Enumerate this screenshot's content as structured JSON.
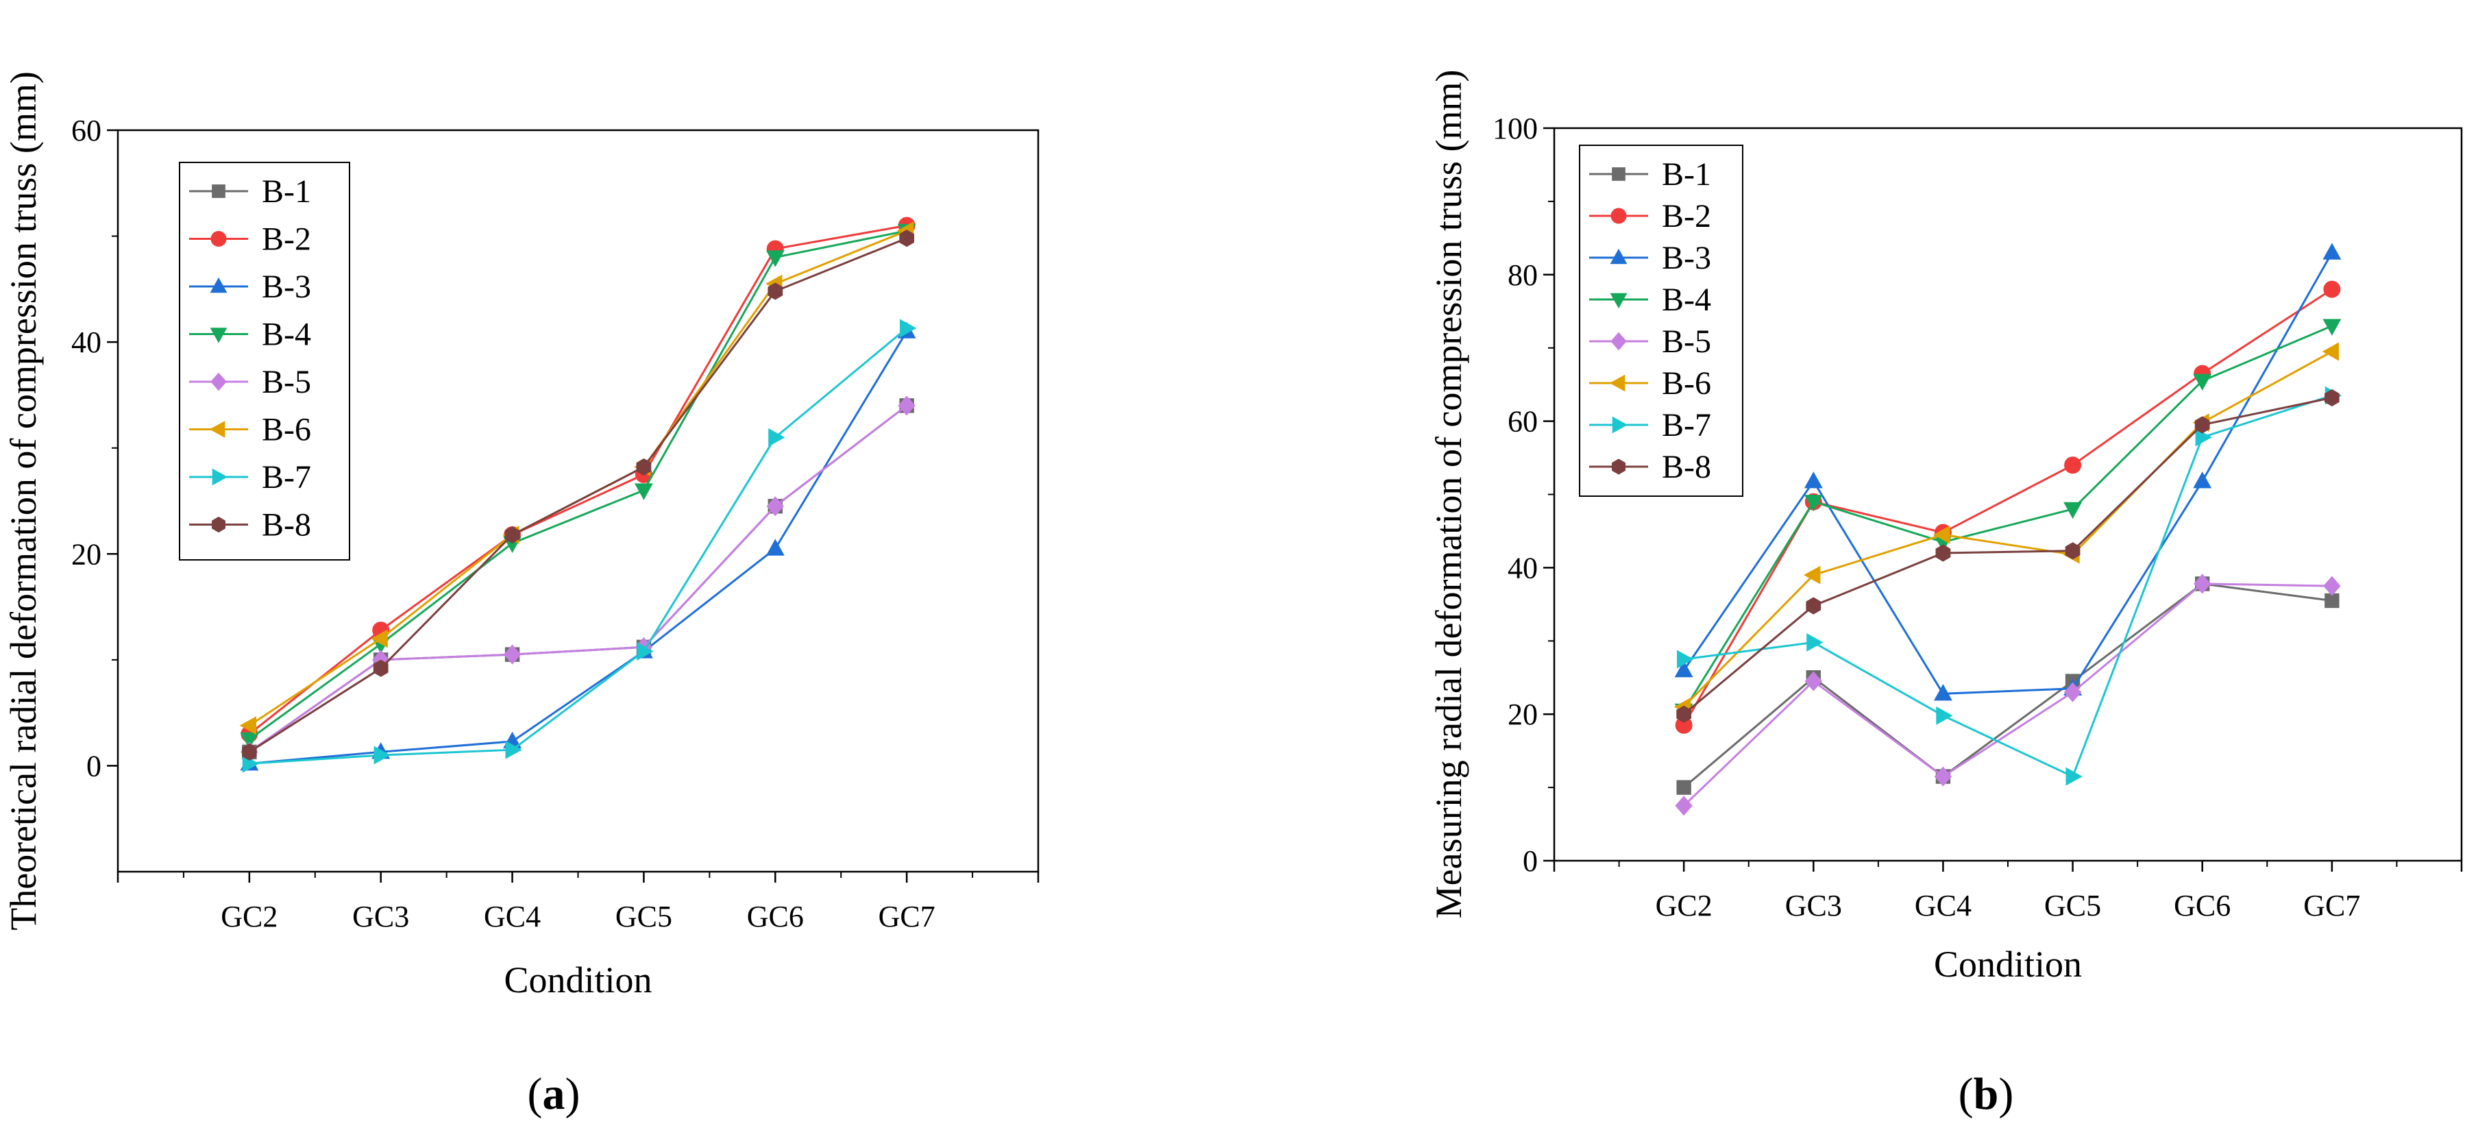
{
  "chart_data": [
    {
      "type": "line",
      "panel_label": "(a)",
      "panel_letter": "a",
      "title": "",
      "xlabel": "Condition",
      "ylabel": "Theoretical radial deformation of compression truss (mm)",
      "categories": [
        "GC2",
        "GC3",
        "GC4",
        "GC5",
        "GC6",
        "GC7"
      ],
      "ylim": [
        -10,
        60
      ],
      "yticks": [
        0,
        20,
        40,
        60
      ],
      "legend_position": "top-left",
      "series": [
        {
          "name": "B-1",
          "color": "#6b6b6b",
          "marker": "square",
          "values": [
            1.3,
            10.0,
            10.5,
            11.2,
            24.5,
            34.0
          ]
        },
        {
          "name": "B-2",
          "color": "#f03b3b",
          "marker": "circle",
          "values": [
            3.0,
            12.8,
            21.8,
            27.5,
            48.8,
            51.0
          ]
        },
        {
          "name": "B-3",
          "color": "#1f6fd6",
          "marker": "triangle-up",
          "values": [
            0.2,
            1.3,
            2.3,
            10.8,
            20.5,
            41.0
          ]
        },
        {
          "name": "B-4",
          "color": "#16a85a",
          "marker": "triangle-down",
          "values": [
            2.5,
            11.5,
            21.0,
            26.0,
            48.0,
            50.5
          ]
        },
        {
          "name": "B-5",
          "color": "#c57fe0",
          "marker": "diamond",
          "values": [
            1.3,
            10.0,
            10.5,
            11.2,
            24.5,
            34.0
          ]
        },
        {
          "name": "B-6",
          "color": "#e0a100",
          "marker": "triangle-left",
          "values": [
            3.8,
            12.0,
            21.8,
            28.2,
            45.5,
            50.5
          ]
        },
        {
          "name": "B-7",
          "color": "#1cc6d1",
          "marker": "triangle-right",
          "values": [
            0.2,
            1.0,
            1.5,
            10.8,
            31.0,
            41.3
          ]
        },
        {
          "name": "B-8",
          "color": "#7b3f3f",
          "marker": "hexagon",
          "values": [
            1.3,
            9.2,
            21.8,
            28.2,
            44.8,
            49.8
          ]
        }
      ]
    },
    {
      "type": "line",
      "panel_label": "(b)",
      "panel_letter": "b",
      "title": "",
      "xlabel": "Condition",
      "ylabel": "Measuring radial deformation of compression truss (mm)",
      "categories": [
        "GC2",
        "GC3",
        "GC4",
        "GC5",
        "GC6",
        "GC7"
      ],
      "ylim": [
        0,
        100
      ],
      "yticks": [
        0,
        20,
        40,
        60,
        80,
        100
      ],
      "legend_position": "top-left",
      "series": [
        {
          "name": "B-1",
          "color": "#6b6b6b",
          "marker": "square",
          "values": [
            10.0,
            25.0,
            11.5,
            24.5,
            37.8,
            35.5
          ]
        },
        {
          "name": "B-2",
          "color": "#f03b3b",
          "marker": "circle",
          "values": [
            18.5,
            49.0,
            44.8,
            54.0,
            66.5,
            78.0
          ]
        },
        {
          "name": "B-3",
          "color": "#1f6fd6",
          "marker": "triangle-up",
          "values": [
            26.0,
            51.8,
            22.8,
            23.5,
            51.8,
            83.0
          ]
        },
        {
          "name": "B-4",
          "color": "#16a85a",
          "marker": "triangle-down",
          "values": [
            20.5,
            49.0,
            43.5,
            48.0,
            65.5,
            73.0
          ]
        },
        {
          "name": "B-5",
          "color": "#c57fe0",
          "marker": "diamond",
          "values": [
            7.5,
            24.5,
            11.5,
            23.0,
            37.8,
            37.5
          ]
        },
        {
          "name": "B-6",
          "color": "#e0a100",
          "marker": "triangle-left",
          "values": [
            21.0,
            39.0,
            44.5,
            41.8,
            59.8,
            69.5
          ]
        },
        {
          "name": "B-7",
          "color": "#1cc6d1",
          "marker": "triangle-right",
          "values": [
            27.5,
            29.8,
            19.8,
            11.5,
            57.8,
            63.5
          ]
        },
        {
          "name": "B-8",
          "color": "#7b3f3f",
          "marker": "hexagon",
          "values": [
            20.0,
            34.8,
            42.0,
            42.3,
            59.5,
            63.2
          ]
        }
      ]
    }
  ]
}
